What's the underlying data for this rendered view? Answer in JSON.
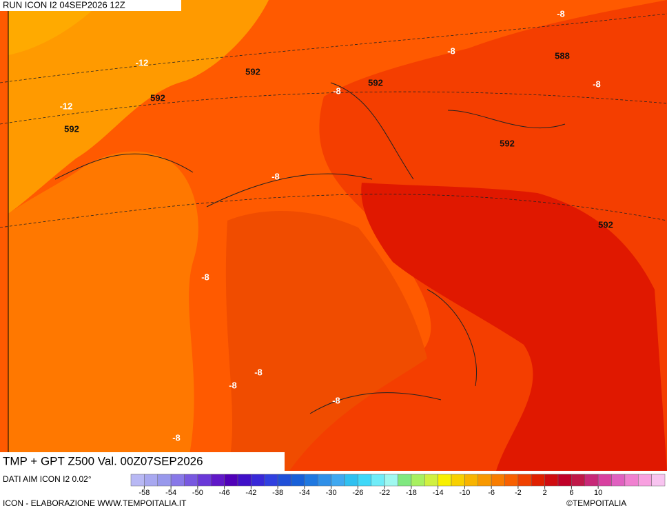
{
  "header": {
    "run": "RUN ICON I2 04SEP2026 12Z"
  },
  "map": {
    "title": "TMP + GPT Z500 Val. 00Z07SEP2026",
    "labels": [
      "-12",
      "-12",
      "592",
      "592",
      "592",
      "-8",
      "592",
      "-8",
      "-8",
      "588",
      "-8",
      "592",
      "592",
      "-8",
      "-8",
      "-8",
      "-8",
      "-8",
      "-8"
    ]
  },
  "footer": {
    "source": "DATI AIM ICON I2 0.02°",
    "credit": "ICON - ELABORAZIONE WWW.TEMPOITALIA.IT",
    "brand": "©TEMPOITALIA"
  },
  "colorbar": {
    "ticks": [
      -58,
      -54,
      -50,
      -46,
      -42,
      -38,
      -34,
      -30,
      -26,
      -22,
      -18,
      -14,
      -10,
      -6,
      -2,
      2,
      6,
      10
    ],
    "colors": [
      "#b8b8f4",
      "#a8a8f0",
      "#9898ec",
      "#8878e8",
      "#7858e0",
      "#6a38d8",
      "#6018c8",
      "#5000b8",
      "#4010c8",
      "#3828d8",
      "#3040e0",
      "#2050d8",
      "#1860d8",
      "#2078e0",
      "#3090e8",
      "#40a8f0",
      "#30c0f0",
      "#40d8f8",
      "#70ecf8",
      "#a0f8f0",
      "#80e880",
      "#a8f060",
      "#d0f040",
      "#f8f000",
      "#f8d000",
      "#f8b400",
      "#f89800",
      "#f87c00",
      "#f86000",
      "#f04000",
      "#e02000",
      "#d00c10",
      "#c00028",
      "#c01848",
      "#c82878",
      "#d840a0",
      "#e060c0",
      "#f080d0",
      "#f8a0e0",
      "#f8c4f0"
    ]
  }
}
